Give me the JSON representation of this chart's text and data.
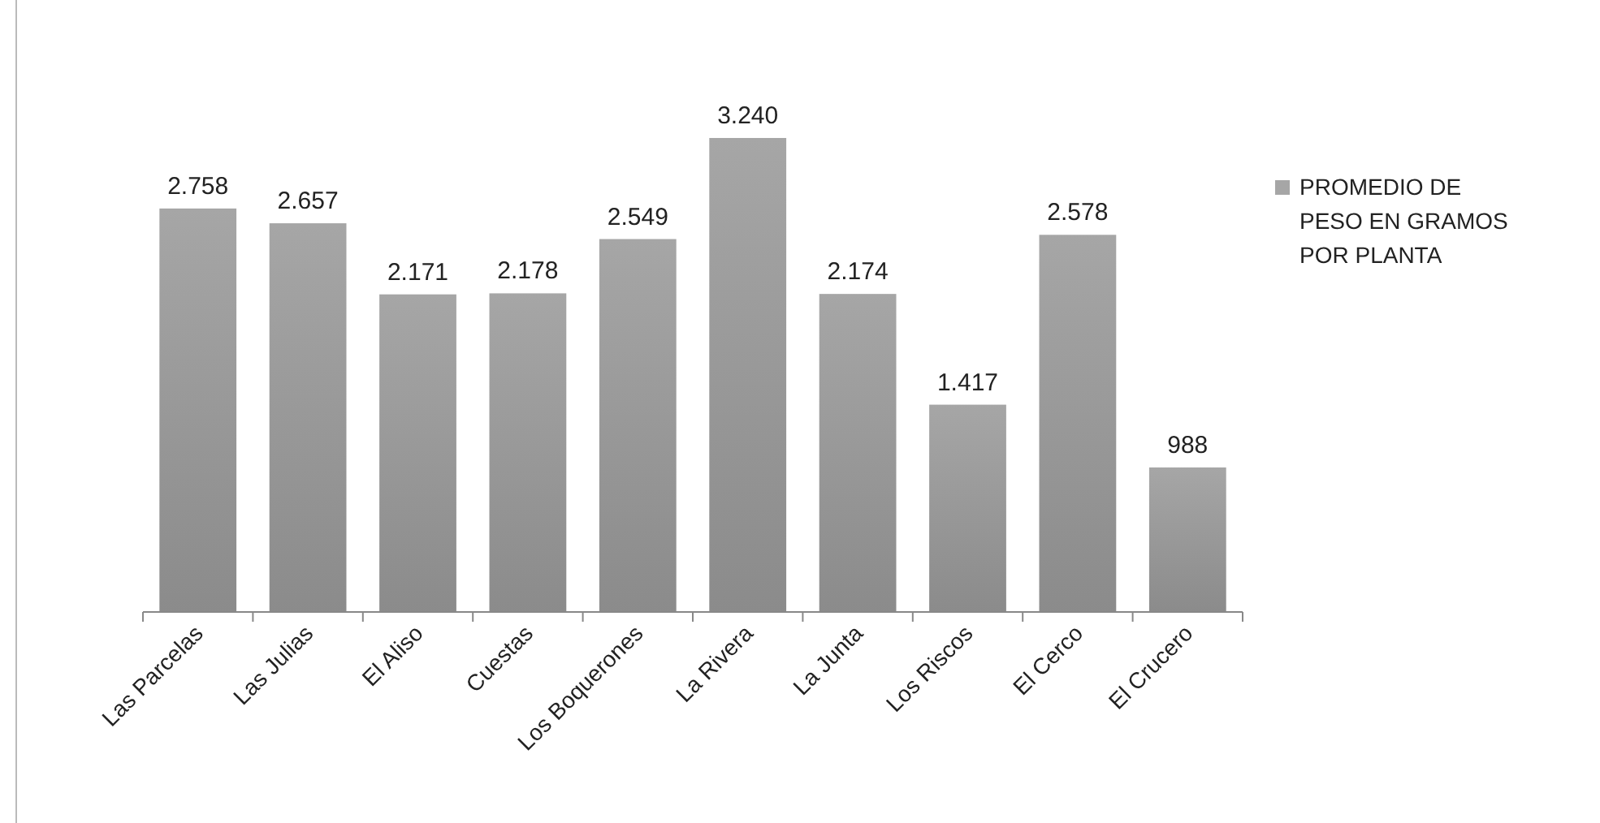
{
  "chart_data": {
    "type": "bar",
    "categories": [
      "Las Parcelas",
      "Las Julias",
      "El Aliso",
      "Cuestas",
      "Los Boquerones",
      "La Rivera",
      "La Junta",
      "Los Riscos",
      "El Cerco",
      "El Crucero"
    ],
    "series": [
      {
        "name": "PROMEDIO DE PESO EN GRAMOS POR PLANTA",
        "color": "#a6a6a6",
        "values": [
          2758,
          2657,
          2171,
          2178,
          2549,
          3240,
          2174,
          1417,
          2578,
          988
        ],
        "value_labels": [
          "2.758",
          "2.657",
          "2.171",
          "2.178",
          "2.549",
          "3.240",
          "2.174",
          "1.417",
          "2.578",
          "988"
        ]
      }
    ],
    "legend": "right"
  }
}
